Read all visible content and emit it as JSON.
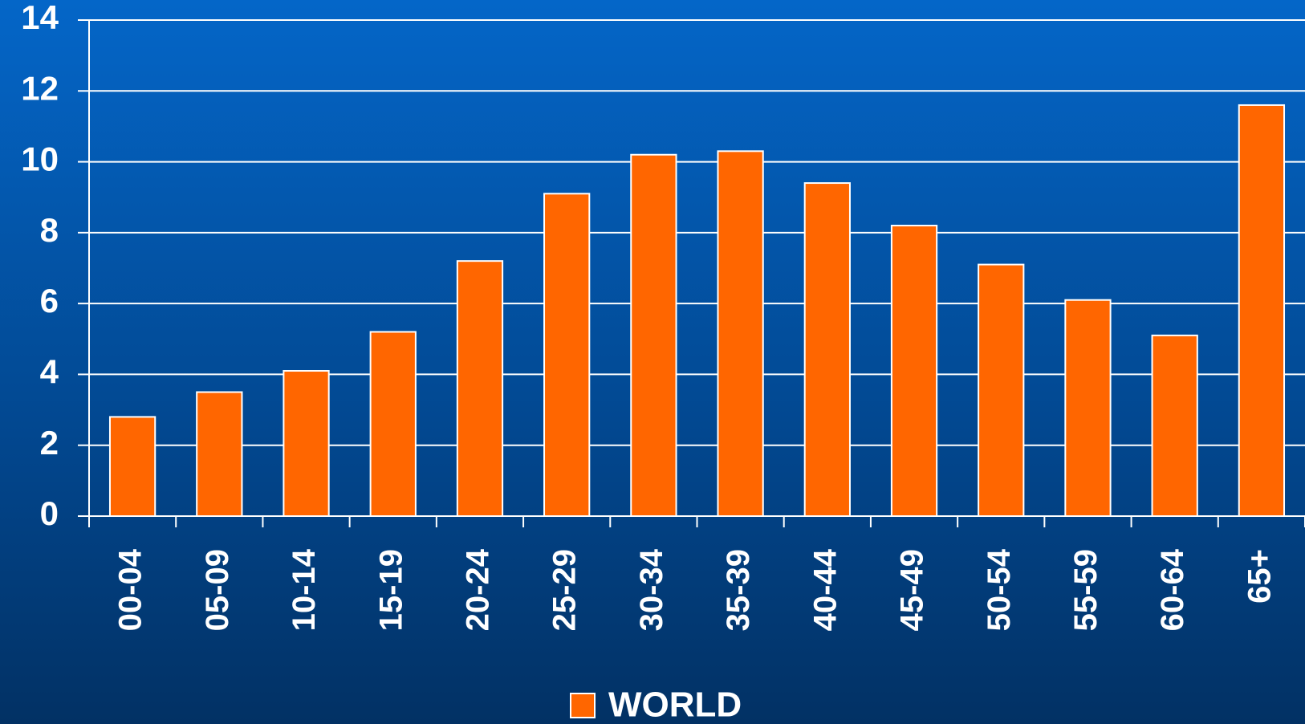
{
  "chart_data": {
    "type": "bar",
    "categories": [
      "00-04",
      "05-09",
      "10-14",
      "15-19",
      "20-24",
      "25-29",
      "30-34",
      "35-39",
      "40-44",
      "45-49",
      "50-54",
      "55-59",
      "60-64",
      "65+"
    ],
    "series": [
      {
        "name": "WORLD",
        "color": "#ff6600",
        "values": [
          2.8,
          3.5,
          4.1,
          5.2,
          7.2,
          9.1,
          10.2,
          10.3,
          9.4,
          8.2,
          7.1,
          6.1,
          5.1,
          11.6
        ]
      }
    ],
    "ylim": [
      0,
      14
    ],
    "yticks": [
      0,
      2,
      4,
      6,
      8,
      10,
      12,
      14
    ],
    "grid": true,
    "legend": "bottom"
  }
}
